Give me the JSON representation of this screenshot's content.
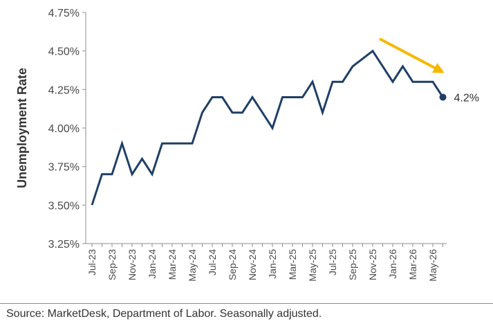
{
  "chart_data": {
    "type": "line",
    "ylabel": "Unemployment Rate",
    "xlabel": "",
    "title": "",
    "ylim": [
      3.25,
      4.75
    ],
    "yticks": [
      "3.25%",
      "3.50%",
      "3.75%",
      "4.00%",
      "4.25%",
      "4.50%",
      "4.75%"
    ],
    "x_tick_labels": [
      "Jul-23",
      "Sep-23",
      "Nov-23",
      "Jan-24",
      "Mar-24",
      "May-24",
      "Jul-24",
      "Sep-24",
      "Nov-24",
      "Jan-25",
      "Mar-25",
      "May-25",
      "Jul-25",
      "Sep-25",
      "Nov-25",
      "Jan-26",
      "Mar-26",
      "May-26"
    ],
    "x": [
      "Jul-23",
      "Aug-23",
      "Sep-23",
      "Oct-23",
      "Nov-23",
      "Dec-23",
      "Jan-24",
      "Feb-24",
      "Mar-24",
      "Apr-24",
      "May-24",
      "Jun-24",
      "Jul-24",
      "Aug-24",
      "Sep-24",
      "Oct-24",
      "Nov-24",
      "Dec-24",
      "Jan-25",
      "Feb-25",
      "Mar-25",
      "Apr-25",
      "May-25",
      "Jun-25",
      "Jul-25",
      "Aug-25",
      "Sep-25",
      "Oct-25",
      "Nov-25",
      "Dec-25",
      "Jan-26",
      "Feb-26",
      "Mar-26",
      "Apr-26",
      "May-26",
      "Jun-26"
    ],
    "series": [
      {
        "values": [
          3.5,
          3.7,
          3.7,
          3.9,
          3.7,
          3.8,
          3.7,
          3.9,
          3.9,
          3.9,
          3.9,
          4.1,
          4.2,
          4.2,
          4.1,
          4.1,
          4.2,
          4.1,
          4.0,
          4.2,
          4.2,
          4.2,
          4.3,
          4.1,
          4.3,
          4.3,
          4.4,
          4.45,
          4.5,
          4.4,
          4.3,
          4.4,
          4.3,
          4.3,
          4.3,
          4.2
        ],
        "color": "#1f3f66"
      }
    ],
    "end_label": "4.2%",
    "trend_arrow_color": "#f5b800",
    "grid": false,
    "legend": "none"
  },
  "source": "Source: MarketDesk, Department of Labor. Seasonally adjusted."
}
